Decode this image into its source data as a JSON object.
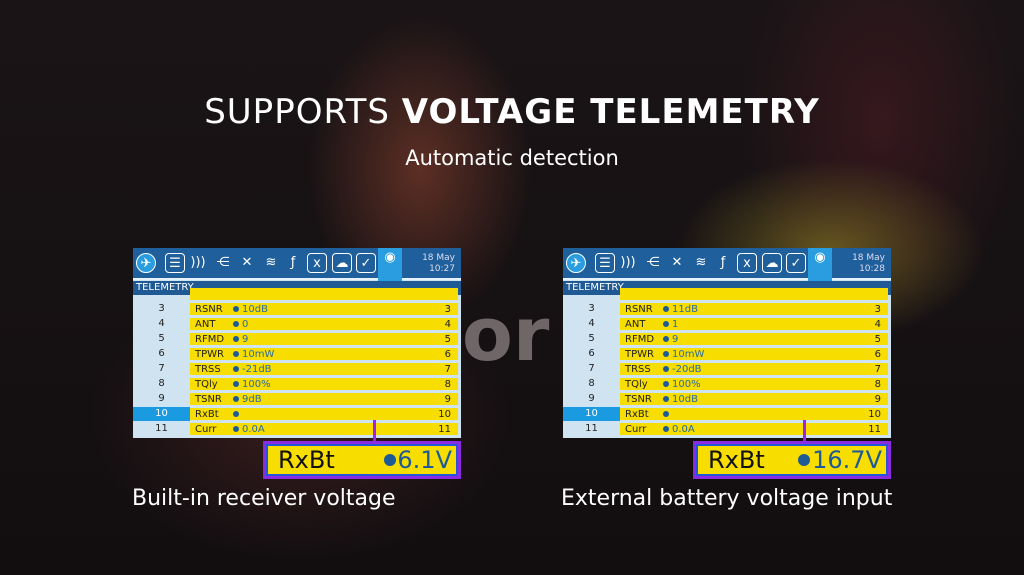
{
  "headline": {
    "light": "SUPPORTS ",
    "bold": "VOLTAGE TELEMETRY"
  },
  "subtitle": "Automatic detection",
  "separator": "or",
  "icons": [
    "airplane-circle-icon",
    "list-icon",
    "signal-waves-icon",
    "mixer-icon",
    "crossfire-icon",
    "curve-icon",
    "logic-icon",
    "x-variable-icon",
    "cloud-icon",
    "checkbox-icon",
    "telemetry-icon"
  ],
  "colors": {
    "yellow": "#f7dd00",
    "blue": "#1f5f9c",
    "highlight": "#1a9ae0",
    "purple": "#8a2be2"
  },
  "screens": [
    {
      "caption": "Built-in receiver voltage",
      "date": "18 May",
      "time": "10:27",
      "section": "TELEMETRY",
      "rows": [
        {
          "n": "3",
          "label": "RSNR",
          "value": "10dB"
        },
        {
          "n": "4",
          "label": "ANT",
          "value": "0"
        },
        {
          "n": "5",
          "label": "RFMD",
          "value": "9"
        },
        {
          "n": "6",
          "label": "TPWR",
          "value": "10mW"
        },
        {
          "n": "7",
          "label": "TRSS",
          "value": "-21dB"
        },
        {
          "n": "8",
          "label": "TQly",
          "value": "100%"
        },
        {
          "n": "9",
          "label": "TSNR",
          "value": "9dB"
        },
        {
          "n": "10",
          "label": "RxBt",
          "value": ""
        },
        {
          "n": "11",
          "label": "Curr",
          "value": "0.0A"
        }
      ],
      "zoom": {
        "label": "RxBt",
        "value": "6.1V"
      }
    },
    {
      "caption": "External battery voltage input",
      "date": "18 May",
      "time": "10:28",
      "section": "TELEMETRY",
      "rows": [
        {
          "n": "3",
          "label": "RSNR",
          "value": "11dB"
        },
        {
          "n": "4",
          "label": "ANT",
          "value": "1"
        },
        {
          "n": "5",
          "label": "RFMD",
          "value": "9"
        },
        {
          "n": "6",
          "label": "TPWR",
          "value": "10mW"
        },
        {
          "n": "7",
          "label": "TRSS",
          "value": "-20dB"
        },
        {
          "n": "8",
          "label": "TQly",
          "value": "100%"
        },
        {
          "n": "9",
          "label": "TSNR",
          "value": "10dB"
        },
        {
          "n": "10",
          "label": "RxBt",
          "value": ""
        },
        {
          "n": "11",
          "label": "Curr",
          "value": "0.0A"
        }
      ],
      "zoom": {
        "label": "RxBt",
        "value": "16.7V"
      }
    }
  ]
}
